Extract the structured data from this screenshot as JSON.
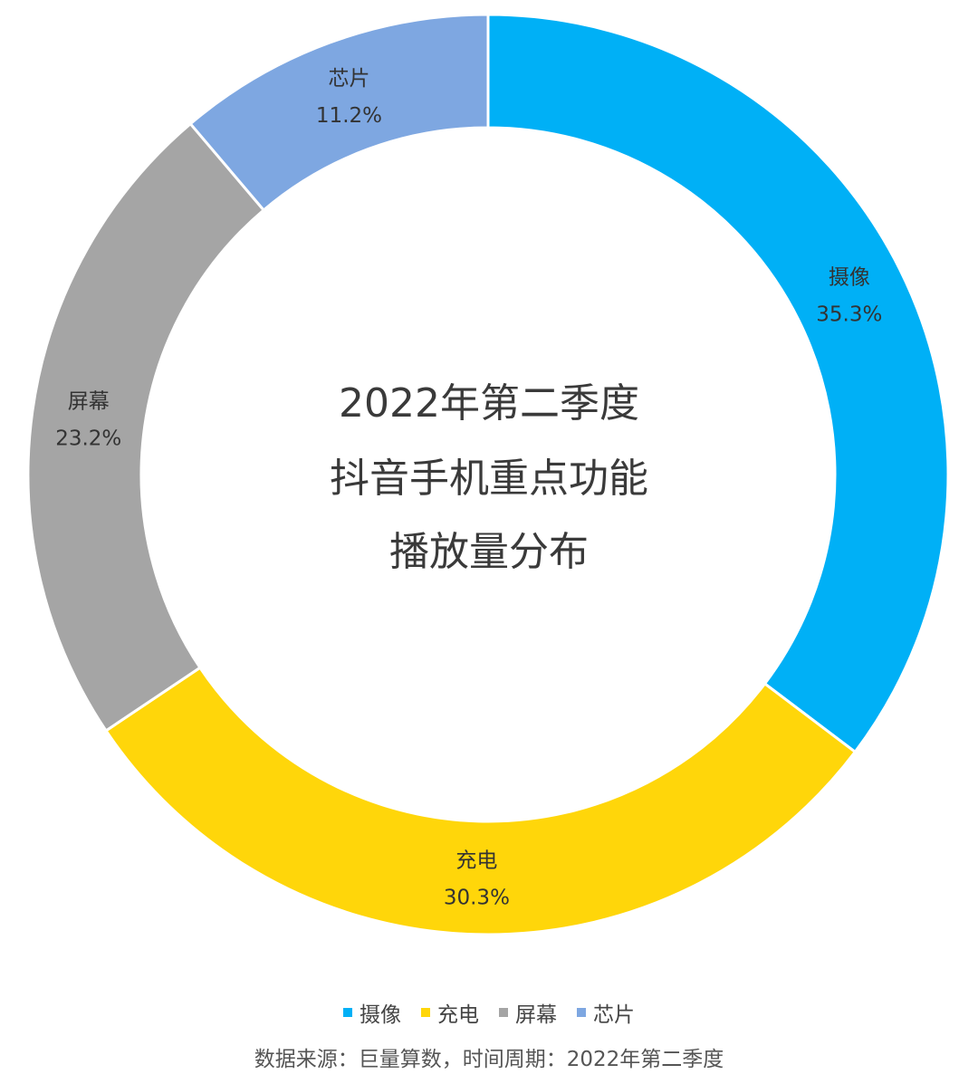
{
  "chart_data": {
    "type": "pie",
    "variant": "donut",
    "title_lines": [
      "2022年第二季度",
      "抖音手机重点功能",
      "播放量分布"
    ],
    "slices": [
      {
        "name": "摄像",
        "value": 35.3,
        "label": "35.3%",
        "color": "#00b0f6"
      },
      {
        "name": "充电",
        "value": 30.3,
        "label": "30.3%",
        "color": "#ffd60a"
      },
      {
        "name": "屏幕",
        "value": 23.2,
        "label": "23.2%",
        "color": "#a5a5a5"
      },
      {
        "name": "芯片",
        "value": 11.2,
        "label": "11.2%",
        "color": "#7ea7e1"
      }
    ],
    "legend_position": "bottom"
  },
  "footer": {
    "source": "数据来源：巨量算数，时间周期：2022年第二季度"
  }
}
